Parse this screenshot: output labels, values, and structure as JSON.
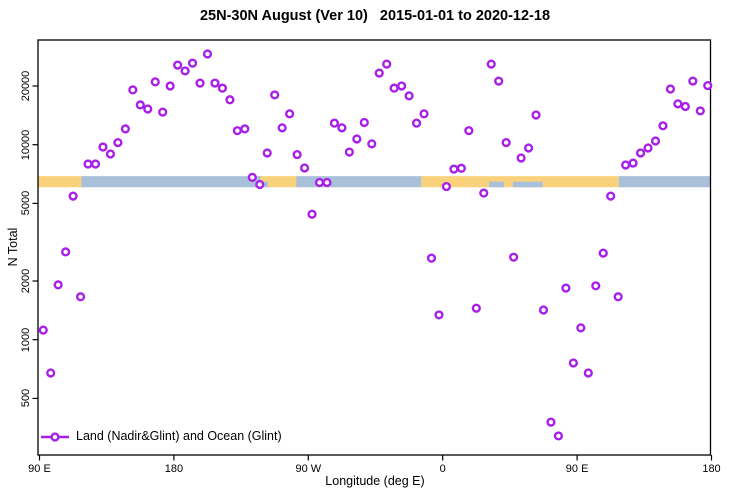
{
  "title": "25N-30N August (Ver 10)   2015-01-01 to 2020-12-18",
  "axes": {
    "x": {
      "label": "Longitude (deg E)",
      "note": "axis spans 450 degrees of longitude starting at 90E on the left, wrapping eastward: 90E -> 180 -> 90W -> 0 -> 90E -> 180",
      "ticks": [
        {
          "label": "90 E",
          "d": 0
        },
        {
          "label": "180",
          "d": 90
        },
        {
          "label": "90 W",
          "d": 180
        },
        {
          "label": "0",
          "d": 270
        },
        {
          "label": "90 E",
          "d": 360
        },
        {
          "label": "180",
          "d": 450
        }
      ]
    },
    "y": {
      "label": "N Total",
      "scale": "log10",
      "ticks": [
        "500",
        "1000",
        "2000",
        "5000",
        "10000",
        "20000"
      ],
      "range_approx": [
        260,
        34000
      ]
    }
  },
  "legend": {
    "label": "Land (Nadir&Glint) and Ocean (Glint)",
    "marker": "open-circle-on-line"
  },
  "colors": {
    "point": "#A81FEA",
    "land": "#FAD27C",
    "ocean": "#A9C0DB",
    "axis": "#000000",
    "background": "#FFFFFF"
  },
  "chart_data": {
    "type": "scatter",
    "title": "25N-30N August (Ver 10)   2015-01-01 to 2020-12-18",
    "xlabel": "Longitude (deg E)",
    "ylabel": "N Total",
    "x_units": "degrees east of 90E along the axis (0-450), 5-degree bin centers",
    "y_units": "number of soundings (log scale)",
    "points": [
      [
        2.5,
        1120
      ],
      [
        7.5,
        675
      ],
      [
        12.5,
        1910
      ],
      [
        17.5,
        2820
      ],
      [
        22.5,
        5450
      ],
      [
        27.5,
        1660
      ],
      [
        32.5,
        7960
      ],
      [
        37.5,
        7960
      ],
      [
        42.5,
        9730
      ],
      [
        47.5,
        8960
      ],
      [
        52.5,
        10250
      ],
      [
        57.5,
        12050
      ],
      [
        62.5,
        19100
      ],
      [
        67.5,
        16000
      ],
      [
        72.5,
        15250
      ],
      [
        77.5,
        21000
      ],
      [
        82.5,
        14700
      ],
      [
        87.5,
        20000
      ],
      [
        92.5,
        25600
      ],
      [
        97.5,
        23900
      ],
      [
        102.5,
        26200
      ],
      [
        107.5,
        20700
      ],
      [
        112.5,
        29200
      ],
      [
        117.5,
        20700
      ],
      [
        122.5,
        19500
      ],
      [
        127.5,
        17000
      ],
      [
        132.5,
        11800
      ],
      [
        137.5,
        12050
      ],
      [
        142.5,
        6800
      ],
      [
        147.5,
        6250
      ],
      [
        152.5,
        9070
      ],
      [
        157.5,
        18000
      ],
      [
        162.5,
        12200
      ],
      [
        167.5,
        14400
      ],
      [
        172.5,
        8900
      ],
      [
        177.5,
        7600
      ],
      [
        182.5,
        4400
      ],
      [
        187.5,
        6400
      ],
      [
        192.5,
        6400
      ],
      [
        197.5,
        12900
      ],
      [
        202.5,
        12200
      ],
      [
        207.5,
        9170
      ],
      [
        212.5,
        10700
      ],
      [
        217.5,
        13000
      ],
      [
        222.5,
        10100
      ],
      [
        227.5,
        23300
      ],
      [
        232.5,
        25900
      ],
      [
        237.5,
        19500
      ],
      [
        242.5,
        20000
      ],
      [
        247.5,
        17800
      ],
      [
        252.5,
        12900
      ],
      [
        257.5,
        14400
      ],
      [
        262.5,
        2620
      ],
      [
        267.5,
        1340
      ],
      [
        272.5,
        6100
      ],
      [
        277.5,
        7500
      ],
      [
        282.5,
        7570
      ],
      [
        287.5,
        11800
      ],
      [
        292.5,
        1450
      ],
      [
        297.5,
        5650
      ],
      [
        302.5,
        25900
      ],
      [
        307.5,
        21200
      ],
      [
        312.5,
        10250
      ],
      [
        317.5,
        2650
      ],
      [
        322.5,
        8550
      ],
      [
        327.5,
        9620
      ],
      [
        332.5,
        14200
      ],
      [
        337.5,
        1420
      ],
      [
        342.5,
        378
      ],
      [
        347.5,
        321
      ],
      [
        352.5,
        1840
      ],
      [
        357.5,
        760
      ],
      [
        362.5,
        1150
      ],
      [
        367.5,
        675
      ],
      [
        372.5,
        1890
      ],
      [
        377.5,
        2780
      ],
      [
        382.5,
        5450
      ],
      [
        387.5,
        1660
      ],
      [
        392.5,
        7870
      ],
      [
        397.5,
        8050
      ],
      [
        402.5,
        9070
      ],
      [
        407.5,
        9620
      ],
      [
        412.5,
        10450
      ],
      [
        417.5,
        12500
      ],
      [
        422.5,
        19300
      ],
      [
        427.5,
        16200
      ],
      [
        432.5,
        15700
      ],
      [
        437.5,
        21200
      ],
      [
        442.5,
        14900
      ],
      [
        447.5,
        20100
      ]
    ],
    "surface_band": {
      "represents": "land (gold) vs ocean (blue) surface type strip along the latitude band",
      "value_top": 6900,
      "value_bottom": 6050,
      "segments": [
        {
          "surface": "land",
          "from": 0,
          "to": 29
        },
        {
          "surface": "ocean",
          "from": 29,
          "to": 149
        },
        {
          "surface": "land",
          "from": 149,
          "to": 173
        },
        {
          "surface": "ocean",
          "from": 173,
          "to": 256.5
        },
        {
          "surface": "land",
          "from": 256.5,
          "to": 389
        },
        {
          "surface": "ocean",
          "from": 389,
          "to": 450
        }
      ],
      "notches": [
        {
          "surface": "ocean",
          "from": 150,
          "to": 153,
          "half": "lower"
        },
        {
          "surface": "ocean",
          "from": 301,
          "to": 311,
          "half": "lower"
        },
        {
          "surface": "ocean",
          "from": 317,
          "to": 337,
          "half": "lower"
        }
      ]
    }
  }
}
